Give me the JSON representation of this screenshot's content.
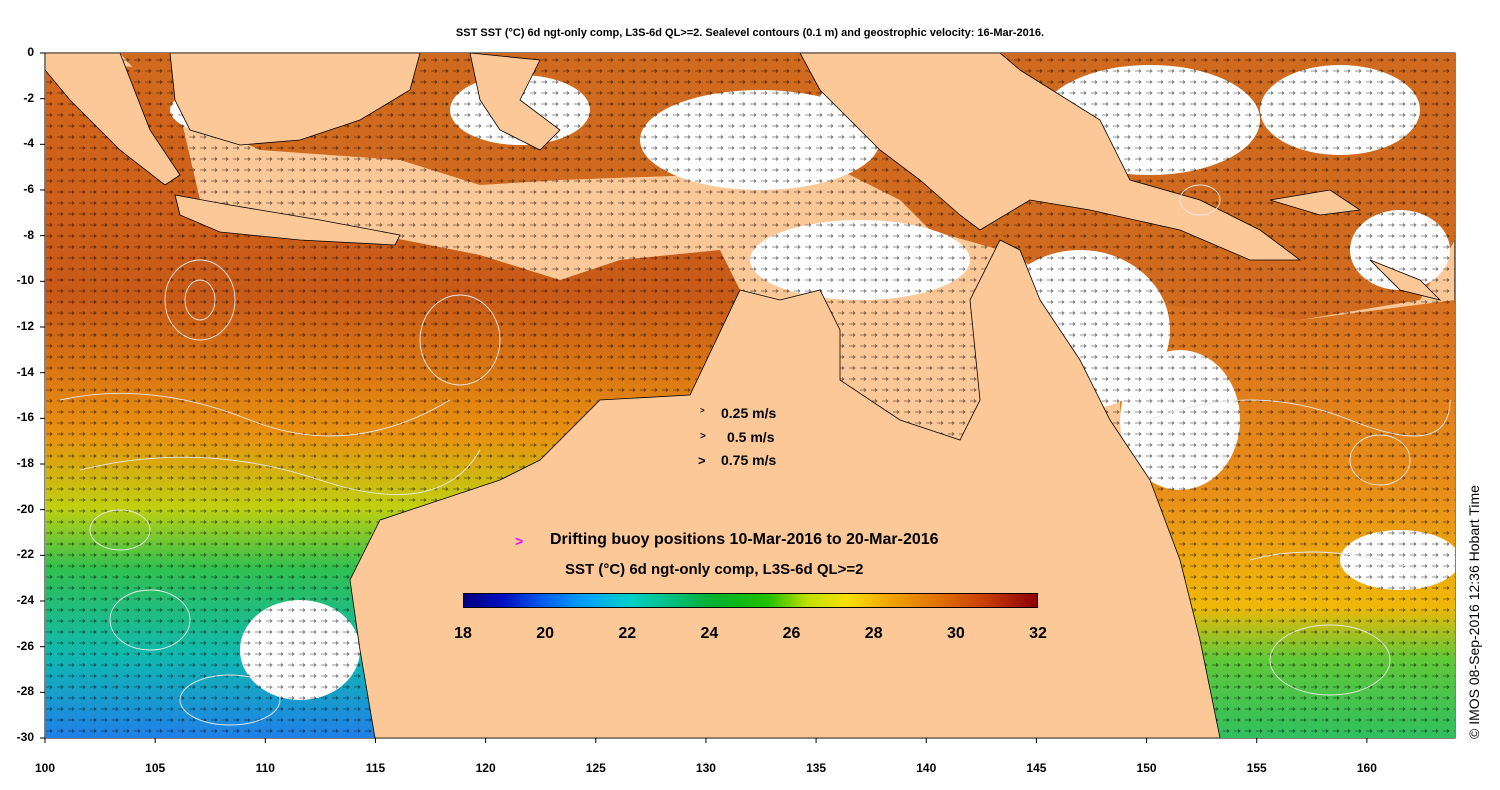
{
  "title": "SST SST (°C) 6d ngt-only comp, L3S-6d QL>=2. Sealevel contours (0.1 m) and geostrophic velocity: 16-Mar-2016.",
  "credit": "© IMOS 08-Sep-2016 12:36 Hobart Time",
  "axes": {
    "x_ticks": [
      "100",
      "105",
      "110",
      "115",
      "120",
      "125",
      "130",
      "135",
      "140",
      "145",
      "150",
      "155",
      "160"
    ],
    "y_ticks": [
      "0",
      "-2",
      "-4",
      "-6",
      "-8",
      "-10",
      "-12",
      "-14",
      "-16",
      "-18",
      "-20",
      "-22",
      "-24",
      "-26",
      "-28",
      "-30"
    ],
    "lon_range": [
      100,
      164
    ],
    "lat_range": [
      -30,
      0
    ]
  },
  "velocity_legend": [
    {
      "label": "0.25 m/s",
      "speed": 0.25
    },
    {
      "label": "0.5 m/s",
      "speed": 0.5
    },
    {
      "label": "0.75 m/s",
      "speed": 0.75
    }
  ],
  "buoy_legend": {
    "marker": ">",
    "label": "Drifting buoy positions 10-Mar-2016 to 20-Mar-2016",
    "color": "#ff00ff"
  },
  "colorbar": {
    "title": "SST (°C) 6d ngt-only comp, L3S-6d QL>=2",
    "ticks": [
      "18",
      "20",
      "22",
      "24",
      "26",
      "28",
      "30",
      "32"
    ],
    "range": [
      18,
      32
    ]
  },
  "colors": {
    "land": "#fcc898",
    "no_data": "#ffffff",
    "contour": "#e8e8e8"
  }
}
